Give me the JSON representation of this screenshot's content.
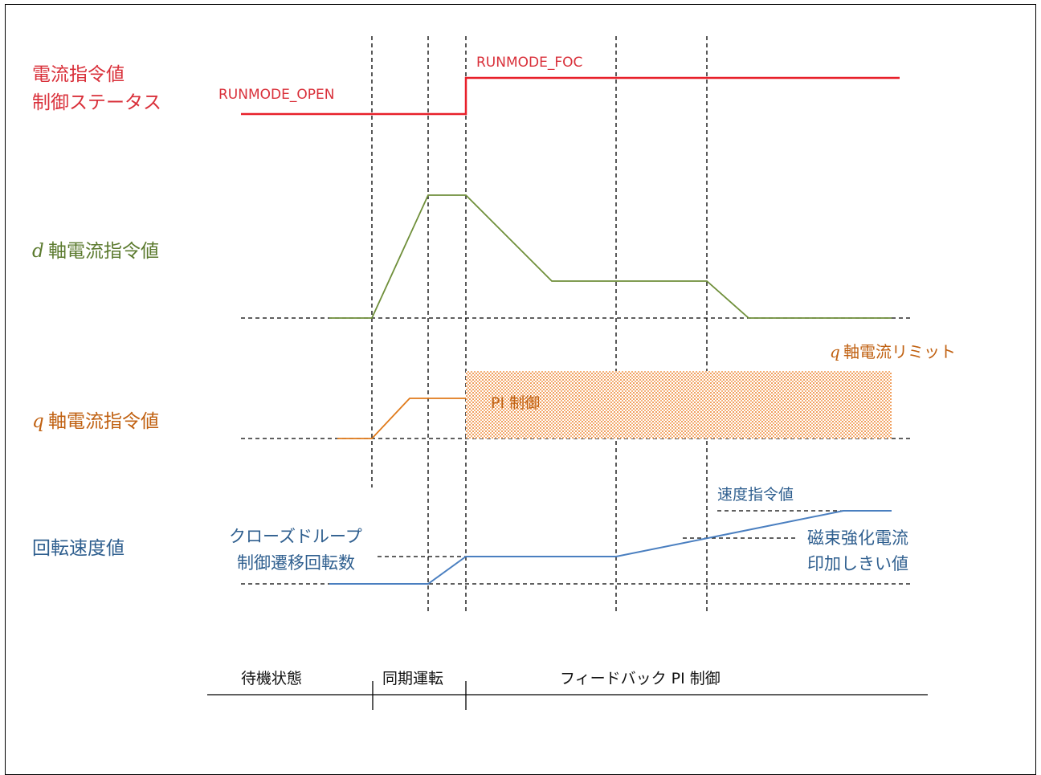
{
  "labels": {
    "current_status_line1": "電流指令値",
    "current_status_line2": "制御ステータス",
    "runmode_open": "RUNMODE_OPEN",
    "runmode_foc": "RUNMODE_FOC",
    "d_axis_prefix": "d",
    "d_axis_text": "軸電流指令値",
    "q_axis_prefix": "q",
    "q_axis_text": "軸電流指令値",
    "q_limit_prefix": "q",
    "q_limit_text": "軸電流リミット",
    "pi_control": "PI 制御",
    "speed_value": "回転速度値",
    "close_loop_line1": "クローズドループ",
    "close_loop_line2": "制御遷移回転数",
    "speed_command": "速度指令値",
    "flux_line1": "磁束強化電流",
    "flux_line2": "印加しきい値"
  },
  "phases": {
    "standby": "待機状態",
    "sync": "同期運転",
    "feedback": "フィードバック PI 制御"
  },
  "colors": {
    "status": "#e8202a",
    "d_axis": "#6f8f3a",
    "q_axis": "#e07a1a",
    "speed": "#4a7fc0",
    "guide": "#000000"
  }
}
